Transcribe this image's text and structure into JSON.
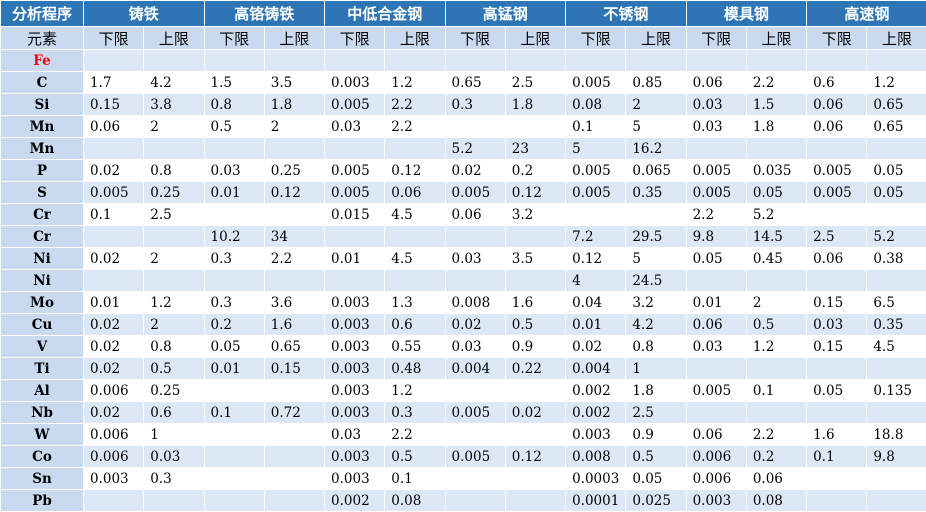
{
  "header": {
    "corner": "分析程序",
    "groups": [
      "铸铁",
      "高铬铸铁",
      "中低合金钢",
      "高锰钢",
      "不锈钢",
      "模具钢",
      "高速钢"
    ]
  },
  "subheader": {
    "corner": "元素",
    "lower": "下限",
    "upper": "上限"
  },
  "rows": [
    {
      "el": "Fe",
      "v": [
        "",
        "",
        "",
        "",
        "",
        "",
        "",
        "",
        "",
        "",
        "",
        "",
        "",
        ""
      ]
    },
    {
      "el": "C",
      "v": [
        "1.7",
        "4.2",
        "1.5",
        "3.5",
        "0.003",
        "1.2",
        "0.65",
        "2.5",
        "0.005",
        "0.85",
        "0.06",
        "2.2",
        "0.6",
        "1.2"
      ]
    },
    {
      "el": "Si",
      "v": [
        "0.15",
        "3.8",
        "0.8",
        "1.8",
        "0.005",
        "2.2",
        "0.3",
        "1.8",
        "0.08",
        "2",
        "0.03",
        "1.5",
        "0.06",
        "0.65"
      ]
    },
    {
      "el": "Mn",
      "v": [
        "0.06",
        "2",
        "0.5",
        "2",
        "0.03",
        "2.2",
        "",
        "",
        "0.1",
        "5",
        "0.03",
        "1.8",
        "0.06",
        "0.65"
      ]
    },
    {
      "el": "Mn",
      "v": [
        "",
        "",
        "",
        "",
        "",
        "",
        "5.2",
        "23",
        "5",
        "16.2",
        "",
        "",
        "",
        ""
      ]
    },
    {
      "el": "P",
      "v": [
        "0.02",
        "0.8",
        "0.03",
        "0.25",
        "0.005",
        "0.12",
        "0.02",
        "0.2",
        "0.005",
        "0.065",
        "0.005",
        "0.035",
        "0.005",
        "0.05"
      ]
    },
    {
      "el": "S",
      "v": [
        "0.005",
        "0.25",
        "0.01",
        "0.12",
        "0.005",
        "0.06",
        "0.005",
        "0.12",
        "0.005",
        "0.35",
        "0.005",
        "0.05",
        "0.005",
        "0.05"
      ]
    },
    {
      "el": "Cr",
      "v": [
        "0.1",
        "2.5",
        "",
        "",
        "0.015",
        "4.5",
        "0.06",
        "3.2",
        "",
        "",
        "2.2",
        "5.2",
        "",
        ""
      ]
    },
    {
      "el": "Cr",
      "v": [
        "",
        "",
        "10.2",
        "34",
        "",
        "",
        "",
        "",
        "7.2",
        "29.5",
        "9.8",
        "14.5",
        "2.5",
        "5.2"
      ]
    },
    {
      "el": "Ni",
      "v": [
        "0.02",
        "2",
        "0.3",
        "2.2",
        "0.01",
        "4.5",
        "0.03",
        "3.5",
        "0.12",
        "5",
        "0.05",
        "0.45",
        "0.06",
        "0.38"
      ]
    },
    {
      "el": "Ni",
      "v": [
        "",
        "",
        "",
        "",
        "",
        "",
        "",
        "",
        "4",
        "24.5",
        "",
        "",
        "",
        ""
      ]
    },
    {
      "el": "Mo",
      "v": [
        "0.01",
        "1.2",
        "0.3",
        "3.6",
        "0.003",
        "1.3",
        "0.008",
        "1.6",
        "0.04",
        "3.2",
        "0.01",
        "2",
        "0.15",
        "6.5"
      ]
    },
    {
      "el": "Cu",
      "v": [
        "0.02",
        "2",
        "0.2",
        "1.6",
        "0.003",
        "0.6",
        "0.02",
        "0.5",
        "0.01",
        "4.2",
        "0.06",
        "0.5",
        "0.03",
        "0.35"
      ]
    },
    {
      "el": "V",
      "v": [
        "0.02",
        "0.8",
        "0.05",
        "0.65",
        "0.003",
        "0.55",
        "0.03",
        "0.9",
        "0.02",
        "0.8",
        "0.03",
        "1.2",
        "0.15",
        "4.5"
      ]
    },
    {
      "el": "Ti",
      "v": [
        "0.02",
        "0.5",
        "0.01",
        "0.15",
        "0.003",
        "0.48",
        "0.004",
        "0.22",
        "0.004",
        "1",
        "",
        "",
        "",
        ""
      ]
    },
    {
      "el": "Al",
      "v": [
        "0.006",
        "0.25",
        "",
        "",
        "0.003",
        "1.2",
        "",
        "",
        "0.002",
        "1.8",
        "0.005",
        "0.1",
        "0.05",
        "0.135"
      ]
    },
    {
      "el": "Nb",
      "v": [
        "0.02",
        "0.6",
        "0.1",
        "0.72",
        "0.003",
        "0.3",
        "0.005",
        "0.02",
        "0.002",
        "2.5",
        "",
        "",
        "",
        ""
      ]
    },
    {
      "el": "W",
      "v": [
        "0.006",
        "1",
        "",
        "",
        "0.03",
        "2.2",
        "",
        "",
        "0.003",
        "0.9",
        "0.06",
        "2.2",
        "1.6",
        "18.8"
      ]
    },
    {
      "el": "Co",
      "v": [
        "0.006",
        "0.03",
        "",
        "",
        "0.003",
        "0.5",
        "0.005",
        "0.12",
        "0.008",
        "0.5",
        "0.006",
        "0.2",
        "0.1",
        "9.8"
      ]
    },
    {
      "el": "Sn",
      "v": [
        "0.003",
        "0.3",
        "",
        "",
        "0.003",
        "0.1",
        "",
        "",
        "0.0003",
        "0.05",
        "0.006",
        "0.06",
        "",
        ""
      ]
    },
    {
      "el": "Pb",
      "v": [
        "",
        "",
        "",
        "",
        "0.002",
        "0.08",
        "",
        "",
        "0.0001",
        "0.025",
        "0.003",
        "0.08",
        "",
        ""
      ]
    }
  ],
  "colors": {
    "header_bg": "#2e75b6",
    "label_bg": "#c9daf0",
    "stripe_bg": "#dde8f6",
    "fe_text": "#ff0000"
  }
}
